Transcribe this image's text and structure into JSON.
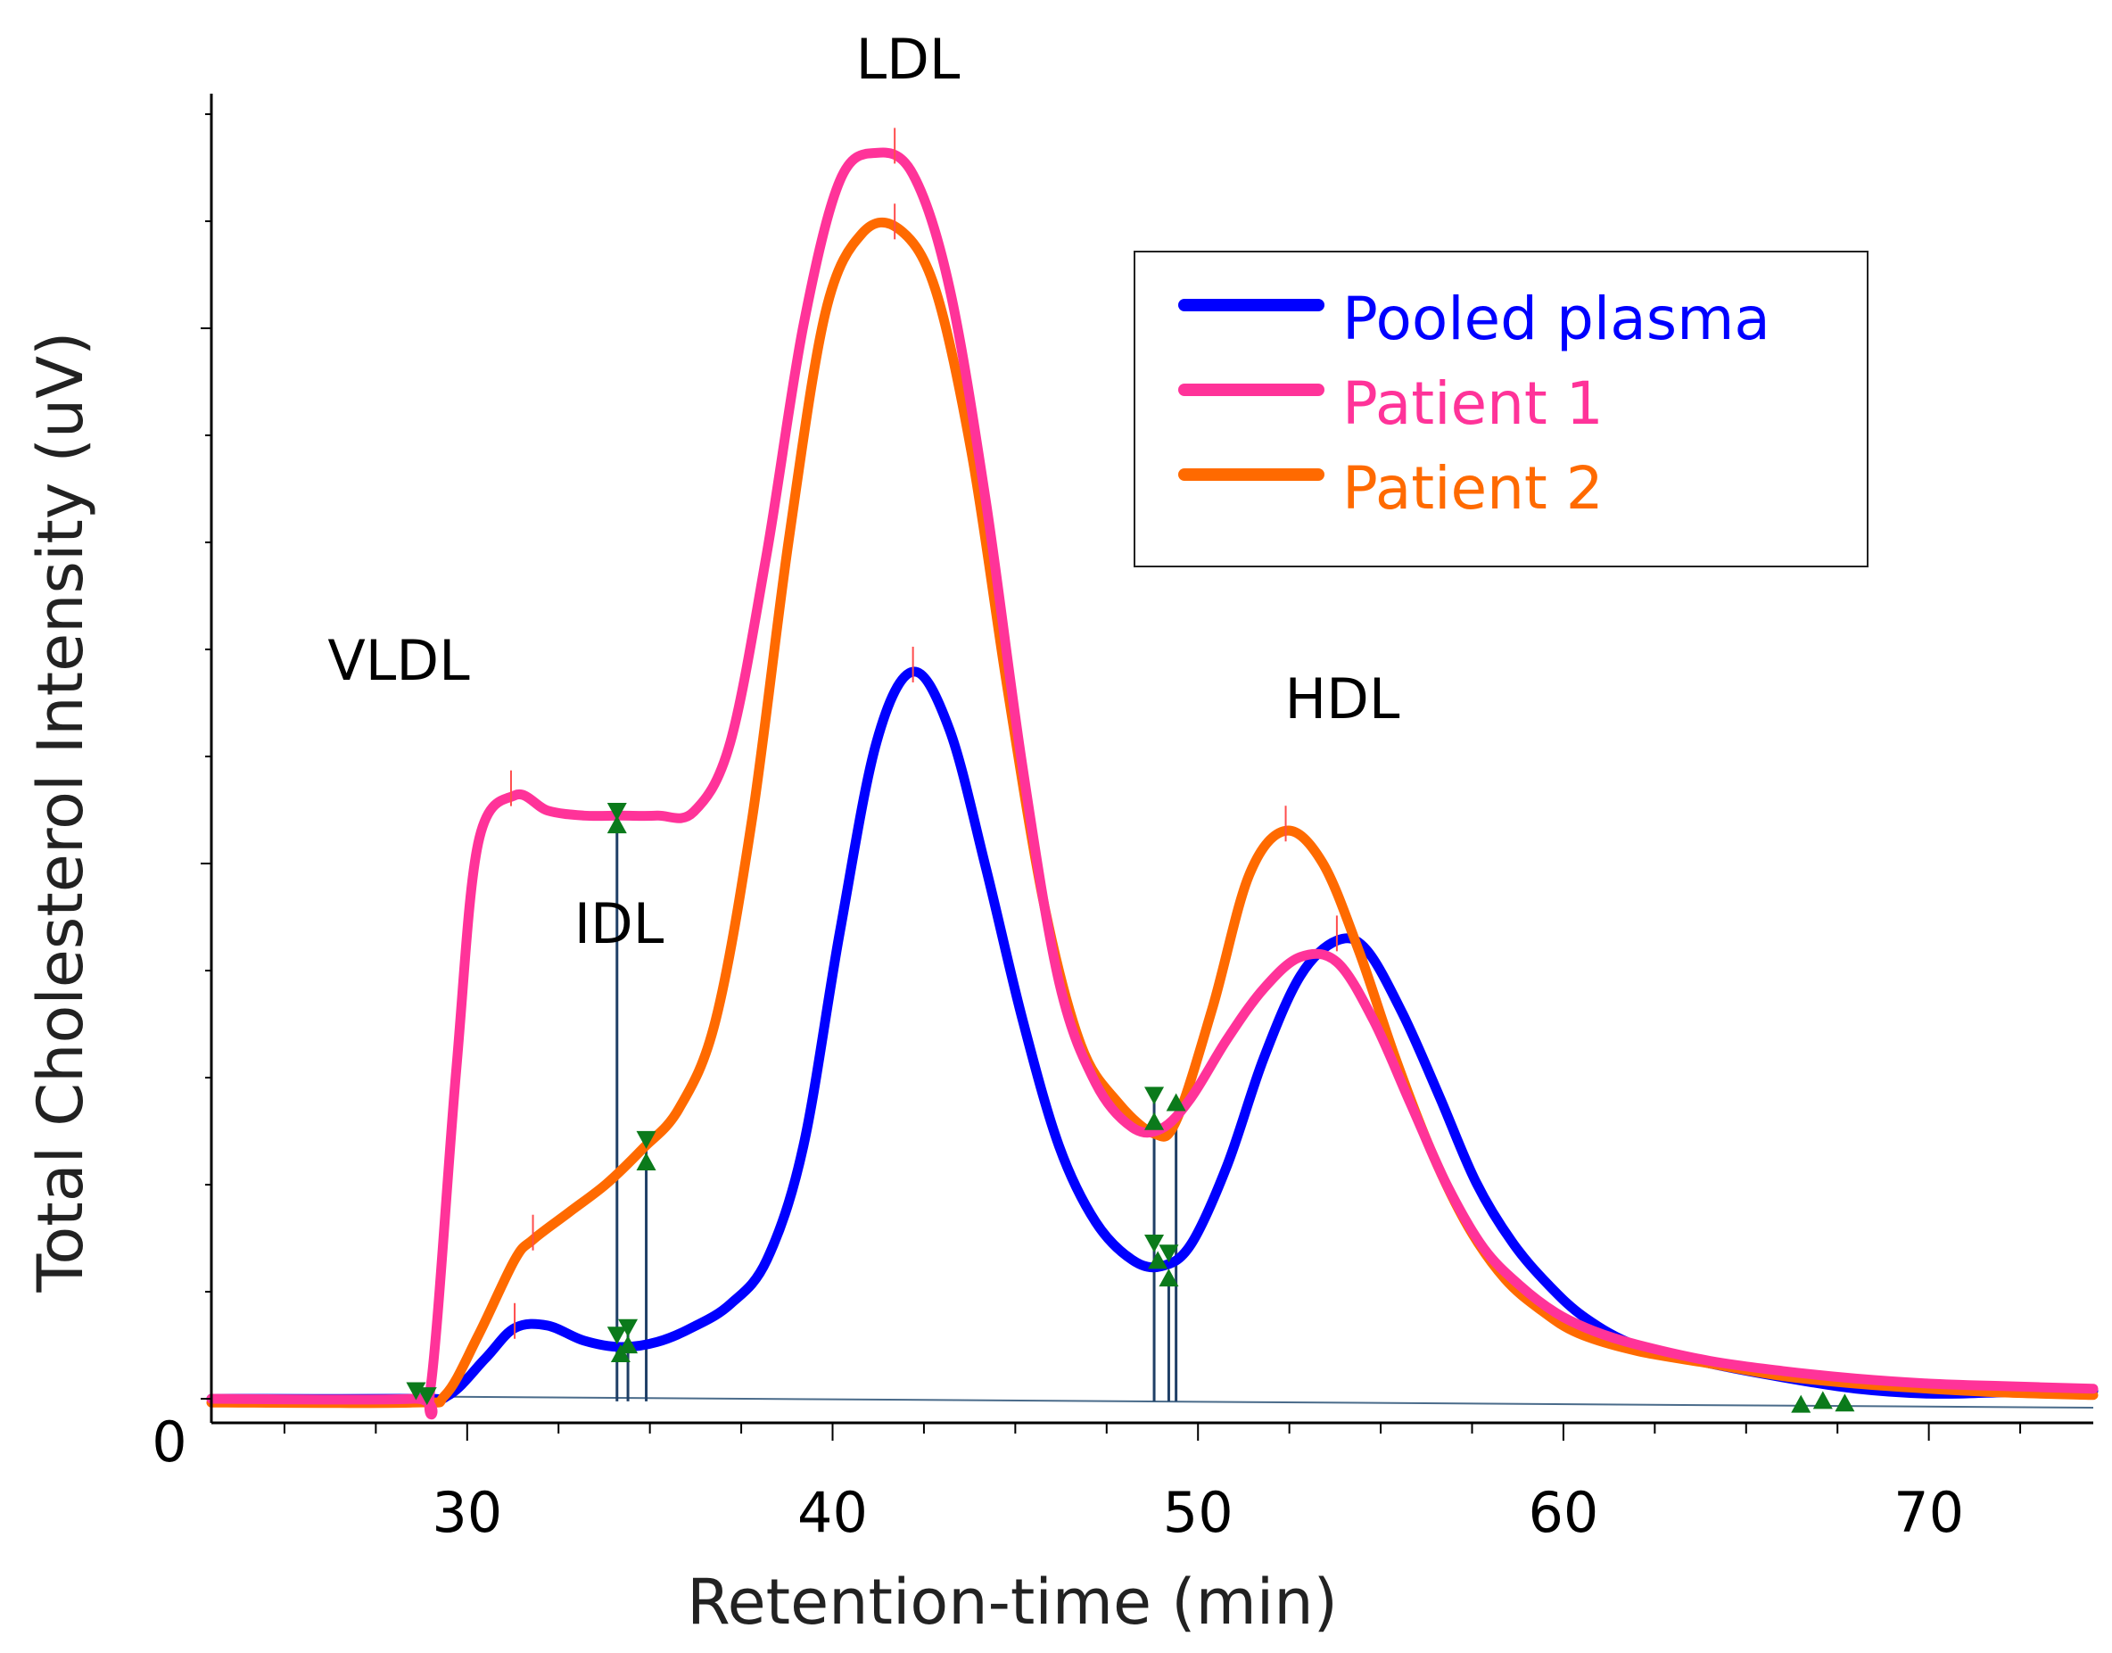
{
  "chart_data": {
    "type": "line",
    "xlabel": "Retention-time (min)",
    "ylabel": "Total Cholesterol Intensity (uV)",
    "xlim": [
      23,
      74.5
    ],
    "ylim": [
      0,
      100
    ],
    "x_ticks": [
      30,
      40,
      50,
      60,
      70
    ],
    "y_ticks": [
      0
    ],
    "legend_position": "top-right",
    "grid": false,
    "series": [
      {
        "name": "Pooled plasma",
        "color": "#0000ff",
        "x": [
          23,
          28.5,
          29.5,
          30.5,
          31.3,
          32.2,
          33.2,
          34.2,
          35.2,
          36.2,
          37.2,
          38.2,
          39.2,
          40.2,
          41.2,
          42.2,
          43.2,
          44.2,
          45.2,
          46.2,
          47.2,
          48.2,
          49.0,
          49.8,
          50.8,
          51.8,
          52.8,
          53.8,
          54.6,
          55.6,
          56.6,
          57.6,
          58.6,
          59.6,
          60.6,
          62,
          64,
          66,
          68,
          70,
          72,
          74.5
        ],
        "y": [
          0,
          0,
          0.3,
          3.2,
          5.6,
          5.8,
          4.6,
          4.1,
          4.5,
          5.7,
          7.5,
          11,
          20,
          37,
          52,
          57.6,
          53,
          42,
          30,
          20,
          14,
          11,
          10.5,
          12.2,
          18.5,
          27,
          33.5,
          36.3,
          35.6,
          30.5,
          24,
          17.2,
          12.4,
          9,
          6.4,
          4.2,
          2.8,
          1.7,
          0.8,
          0.4,
          0.5,
          0.6
        ]
      },
      {
        "name": "Patient 1",
        "color": "#ff3399",
        "x": [
          23,
          28.5,
          29.0,
          29.7,
          30.3,
          31.3,
          32.2,
          33.2,
          34.2,
          35.2,
          36.2,
          37.2,
          38.2,
          39.2,
          40.2,
          41.2,
          42.2,
          43.2,
          44.2,
          45.2,
          46.2,
          47.2,
          48.2,
          49.0,
          49.8,
          50.8,
          51.8,
          52.8,
          53.8,
          54.8,
          55.8,
          56.8,
          57.8,
          58.8,
          59.8,
          60.8,
          62,
          64,
          66,
          68,
          70,
          72,
          74.5
        ],
        "y": [
          0,
          0,
          0.9,
          26,
          44,
          47.8,
          46.6,
          46.2,
          46.2,
          46.2,
          46.5,
          52,
          67,
          85,
          96.5,
          98.7,
          97,
          88,
          71,
          50,
          33,
          25,
          21.5,
          21.4,
          23.8,
          28.5,
          32.5,
          35,
          34.6,
          30,
          23.5,
          17,
          12,
          9,
          6.8,
          5.4,
          4.3,
          3,
          2.2,
          1.6,
          1.2,
          1,
          0.8
        ]
      },
      {
        "name": "Patient 2",
        "color": "#ff6a00",
        "x": [
          23,
          28.5,
          29.4,
          30.3,
          31.3,
          31.8,
          32.8,
          33.8,
          34.8,
          35.8,
          36.8,
          37.8,
          38.8,
          39.8,
          40.8,
          41.8,
          42.8,
          43.8,
          44.8,
          45.8,
          46.8,
          47.8,
          48.8,
          49.4,
          50.4,
          51.4,
          52.4,
          53.4,
          54.4,
          55.4,
          56.4,
          57.4,
          58.4,
          59.4,
          60.4,
          62,
          64,
          66,
          68,
          70,
          72,
          74.5
        ],
        "y": [
          -0.3,
          -0.3,
          0.3,
          5,
          11,
          12.6,
          14.8,
          17,
          19.8,
          23,
          30,
          46,
          68,
          86,
          92.3,
          92.7,
          88,
          75,
          56,
          39,
          28,
          23.5,
          21,
          22,
          31,
          41.5,
          45,
          42.5,
          35.5,
          27,
          19.5,
          13.6,
          9.5,
          7,
          5.2,
          3.8,
          2.8,
          1.8,
          1.2,
          0.8,
          0.5,
          0.3
        ]
      }
    ],
    "annotations": [
      {
        "text": "LDL",
        "x": 41.5,
        "y": 106
      },
      {
        "text": "VLDL",
        "x": 28,
        "y": 60
      },
      {
        "text": "IDL",
        "x": 33.4,
        "y": 37
      },
      {
        "text": "HDL",
        "x": 52.5,
        "y": 56
      }
    ],
    "integration_lines": [
      {
        "x": 34.1,
        "y_top": 46.5
      },
      {
        "x": 34.4,
        "y_top": 5.5
      },
      {
        "x": 34.9,
        "y_top": 20
      },
      {
        "x": 48.8,
        "y_top": 23.5
      },
      {
        "x": 49.2,
        "y_top": 9.5
      },
      {
        "x": 49.4,
        "y_top": 23.5
      }
    ]
  }
}
